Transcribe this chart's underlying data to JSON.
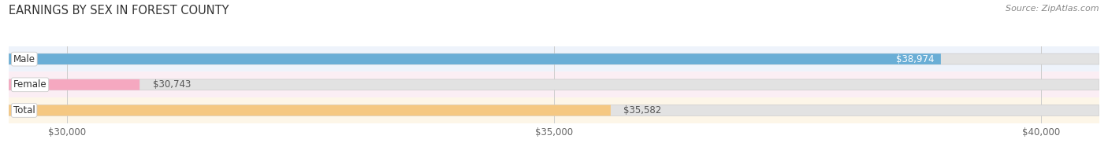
{
  "title": "EARNINGS BY SEX IN FOREST COUNTY",
  "source": "Source: ZipAtlas.com",
  "categories": [
    "Male",
    "Female",
    "Total"
  ],
  "values": [
    38974,
    30743,
    35582
  ],
  "bar_colors": [
    "#6aaed6",
    "#f5a8c0",
    "#f5c882"
  ],
  "bar_bg_color": "#e2e2e2",
  "row_bg_colors": [
    "#eef3fb",
    "#fbeef4",
    "#fdf6e8"
  ],
  "xmin": 29400,
  "xmax": 40600,
  "xticks": [
    30000,
    35000,
    40000
  ],
  "xtick_labels": [
    "$30,000",
    "$35,000",
    "$40,000"
  ],
  "title_fontsize": 10.5,
  "source_fontsize": 8,
  "bar_label_fontsize": 8.5,
  "cat_label_fontsize": 8.5,
  "value_label_color_inside": "#ffffff",
  "value_label_color_outside": "#555555",
  "background_color": "#ffffff",
  "grid_color": "#cccccc",
  "cat_label_bg": "#ffffff",
  "cat_label_border": "#cccccc"
}
